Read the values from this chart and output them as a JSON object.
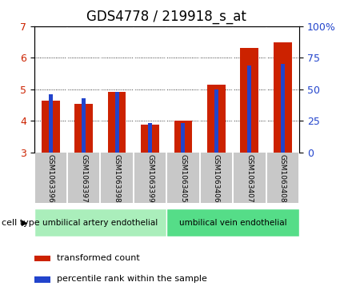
{
  "title": "GDS4778 / 219918_s_at",
  "samples": [
    "GSM1063396",
    "GSM1063397",
    "GSM1063398",
    "GSM1063399",
    "GSM1063405",
    "GSM1063406",
    "GSM1063407",
    "GSM1063408"
  ],
  "transformed_count": [
    4.65,
    4.55,
    4.92,
    3.88,
    4.02,
    5.15,
    6.3,
    6.48
  ],
  "percentile_rank": [
    46,
    43,
    48,
    23,
    23,
    50,
    69,
    70
  ],
  "ylim_left": [
    3,
    7
  ],
  "ylim_right": [
    0,
    100
  ],
  "yticks_left": [
    3,
    4,
    5,
    6,
    7
  ],
  "yticks_right": [
    0,
    25,
    50,
    75,
    100
  ],
  "yticklabels_right": [
    "0",
    "25",
    "50",
    "75",
    "100%"
  ],
  "bar_color_red": "#cc2200",
  "bar_color_blue": "#2244cc",
  "cell_types": [
    {
      "label": "umbilical artery endothelial",
      "start": 0,
      "end": 4,
      "color": "#aaeebb"
    },
    {
      "label": "umbilical vein endothelial",
      "start": 4,
      "end": 8,
      "color": "#55dd88"
    }
  ],
  "cell_type_label": "cell type",
  "legend_items": [
    {
      "label": "transformed count",
      "color": "#cc2200"
    },
    {
      "label": "percentile rank within the sample",
      "color": "#2244cc"
    }
  ],
  "red_bar_width": 0.55,
  "blue_bar_width": 0.12,
  "bg_color_plot": "#ffffff",
  "bg_color_sample": "#c8c8c8",
  "title_fontsize": 12
}
